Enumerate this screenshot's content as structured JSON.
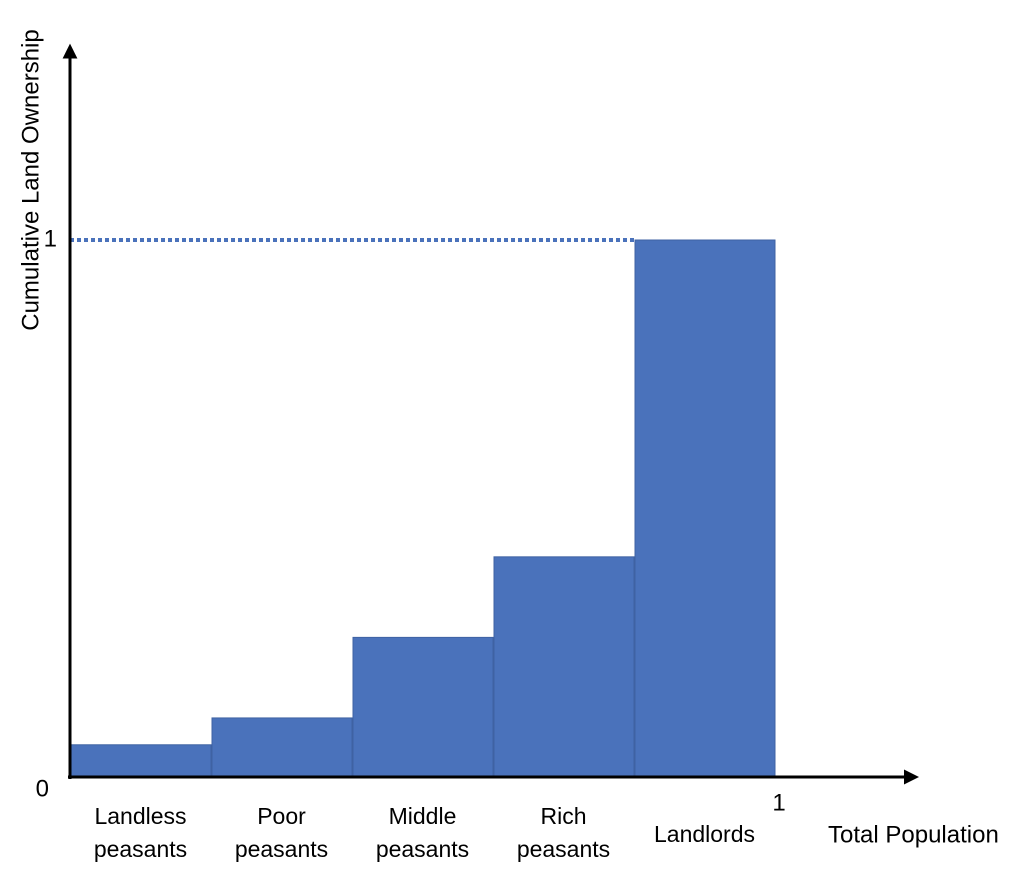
{
  "chart_data": {
    "type": "histogram",
    "ylabel": "Cumulative Land Ownership",
    "xlabel": "Total Population",
    "categories": [
      "Landless peasants",
      "Poor peasants",
      "Middle peasants",
      "Rich peasants",
      "Landlords"
    ],
    "bins": [
      0,
      0.2,
      0.4,
      0.6,
      0.8,
      1
    ],
    "values": [
      0.06,
      0.11,
      0.26,
      0.41,
      1
    ],
    "color": "#4a72bb",
    "xlim": [
      0,
      1.2
    ],
    "ylim": [
      0,
      1.36
    ],
    "xticks": [
      1
    ],
    "yticks": [
      0,
      1
    ],
    "grid": true
  }
}
